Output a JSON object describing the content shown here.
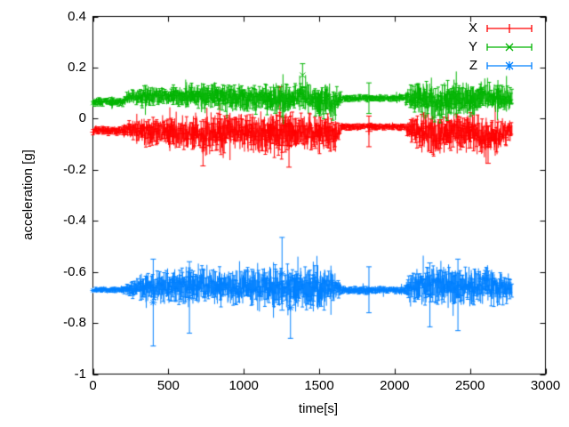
{
  "chart_data": {
    "type": "errorbar-scatter",
    "title": "",
    "xlabel": "time[s]",
    "ylabel": "acceleration [g]",
    "xlim": [
      0,
      3000
    ],
    "ylim": [
      -1,
      0.4
    ],
    "xticks": [
      0,
      500,
      1000,
      1500,
      2000,
      2500,
      3000
    ],
    "yticks": [
      0.4,
      0.2,
      0,
      -0.2,
      -0.4,
      -0.6,
      -0.8,
      -1
    ],
    "grid": false,
    "legend_position": "top-right-inside",
    "axis_color": "#000000",
    "background_color": "#ffffff",
    "series": [
      {
        "name": "X",
        "color": "#ff0000",
        "marker": "plus",
        "style": "errorbars",
        "t_start": 0,
        "t_end": 2780,
        "envelope": [
          [
            0,
            -0.047,
            0.013
          ],
          [
            200,
            -0.047,
            0.013
          ],
          [
            250,
            -0.042,
            0.025
          ],
          [
            350,
            -0.055,
            0.04
          ],
          [
            500,
            -0.05,
            0.045
          ],
          [
            650,
            -0.055,
            0.05
          ],
          [
            800,
            -0.06,
            0.055
          ],
          [
            950,
            -0.05,
            0.05
          ],
          [
            1100,
            -0.055,
            0.055
          ],
          [
            1250,
            -0.065,
            0.065
          ],
          [
            1400,
            -0.05,
            0.05
          ],
          [
            1500,
            -0.06,
            0.055
          ],
          [
            1580,
            -0.07,
            0.055
          ],
          [
            1630,
            -0.05,
            0.03
          ],
          [
            1655,
            -0.032,
            0.01
          ],
          [
            2060,
            -0.032,
            0.01
          ],
          [
            2110,
            -0.05,
            0.04
          ],
          [
            2200,
            -0.055,
            0.055
          ],
          [
            2290,
            -0.065,
            0.06
          ],
          [
            2400,
            -0.05,
            0.05
          ],
          [
            2500,
            -0.055,
            0.055
          ],
          [
            2600,
            -0.07,
            0.055
          ],
          [
            2700,
            -0.06,
            0.05
          ],
          [
            2780,
            -0.045,
            0.025
          ]
        ],
        "outliers": [
          [
            730,
            -0.185,
            -0.04
          ],
          [
            1240,
            -0.105,
            0.125
          ],
          [
            1300,
            -0.19,
            -0.02
          ],
          [
            1830,
            -0.11,
            0.01
          ],
          [
            2620,
            -0.175,
            -0.03
          ]
        ]
      },
      {
        "name": "Y",
        "color": "#00b400",
        "marker": "cross",
        "style": "errorbars",
        "t_start": 0,
        "t_end": 2780,
        "envelope": [
          [
            0,
            0.066,
            0.013
          ],
          [
            200,
            0.066,
            0.013
          ],
          [
            250,
            0.09,
            0.022
          ],
          [
            350,
            0.085,
            0.03
          ],
          [
            500,
            0.09,
            0.028
          ],
          [
            650,
            0.088,
            0.032
          ],
          [
            800,
            0.085,
            0.035
          ],
          [
            950,
            0.08,
            0.038
          ],
          [
            1100,
            0.08,
            0.04
          ],
          [
            1250,
            0.075,
            0.045
          ],
          [
            1400,
            0.09,
            0.035
          ],
          [
            1500,
            0.07,
            0.05
          ],
          [
            1580,
            0.06,
            0.055
          ],
          [
            1630,
            0.075,
            0.03
          ],
          [
            1655,
            0.08,
            0.01
          ],
          [
            2060,
            0.08,
            0.01
          ],
          [
            2110,
            0.08,
            0.04
          ],
          [
            2200,
            0.075,
            0.05
          ],
          [
            2290,
            0.06,
            0.055
          ],
          [
            2400,
            0.08,
            0.045
          ],
          [
            2500,
            0.07,
            0.055
          ],
          [
            2600,
            0.09,
            0.035
          ],
          [
            2700,
            0.075,
            0.045
          ],
          [
            2780,
            0.08,
            0.03
          ]
        ],
        "outliers": [
          [
            1390,
            0.125,
            0.215
          ],
          [
            1830,
            0.02,
            0.14
          ]
        ]
      },
      {
        "name": "Z",
        "color": "#0080ff",
        "marker": "asterisk",
        "style": "errorbars",
        "t_start": 0,
        "t_end": 2780,
        "envelope": [
          [
            0,
            -0.67,
            0.007
          ],
          [
            190,
            -0.67,
            0.007
          ],
          [
            250,
            -0.665,
            0.025
          ],
          [
            350,
            -0.663,
            0.042
          ],
          [
            500,
            -0.66,
            0.048
          ],
          [
            650,
            -0.655,
            0.05
          ],
          [
            800,
            -0.652,
            0.055
          ],
          [
            950,
            -0.66,
            0.048
          ],
          [
            1100,
            -0.657,
            0.052
          ],
          [
            1250,
            -0.66,
            0.062
          ],
          [
            1400,
            -0.662,
            0.055
          ],
          [
            1550,
            -0.665,
            0.058
          ],
          [
            1625,
            -0.668,
            0.035
          ],
          [
            1655,
            -0.672,
            0.011
          ],
          [
            2065,
            -0.672,
            0.011
          ],
          [
            2110,
            -0.66,
            0.045
          ],
          [
            2250,
            -0.65,
            0.058
          ],
          [
            2400,
            -0.658,
            0.058
          ],
          [
            2550,
            -0.655,
            0.058
          ],
          [
            2700,
            -0.66,
            0.05
          ],
          [
            2780,
            -0.665,
            0.035
          ]
        ],
        "outliers": [
          [
            400,
            -0.89,
            -0.55
          ],
          [
            640,
            -0.84,
            -0.56
          ],
          [
            1254,
            -0.75,
            -0.465
          ],
          [
            1310,
            -0.86,
            -0.62
          ],
          [
            1830,
            -0.76,
            -0.58
          ],
          [
            2234,
            -0.815,
            -0.565
          ],
          [
            2420,
            -0.83,
            -0.55
          ]
        ]
      }
    ]
  }
}
